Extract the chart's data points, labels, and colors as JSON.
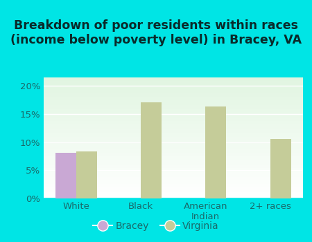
{
  "title": "Breakdown of poor residents within races\n(income below poverty level) in Bracey, VA",
  "categories": [
    "White",
    "Black",
    "American\nIndian",
    "2+ races"
  ],
  "bracey_values": [
    8.1,
    0,
    0,
    0
  ],
  "virginia_values": [
    8.4,
    17.1,
    16.4,
    10.6
  ],
  "bracey_color": "#c9a8d4",
  "virginia_color": "#c5cc99",
  "background_outer": "#00e5e5",
  "ylim": [
    0,
    21.5
  ],
  "yticks": [
    0,
    5,
    10,
    15,
    20
  ],
  "ytick_labels": [
    "0%",
    "5%",
    "10%",
    "15%",
    "20%"
  ],
  "bar_width": 0.32,
  "title_fontsize": 12.5,
  "tick_fontsize": 9.5,
  "legend_fontsize": 10,
  "tick_color": "#1a6a6a",
  "title_color": "#0a2a2a"
}
